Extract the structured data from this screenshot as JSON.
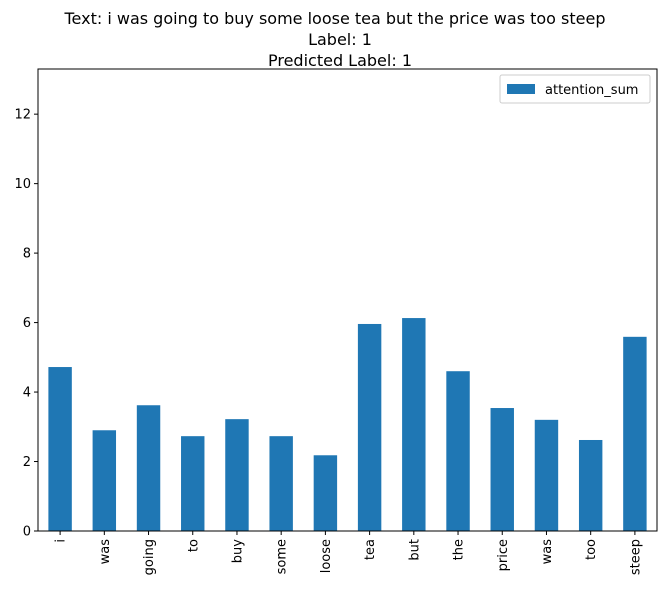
{
  "chart_data": {
    "type": "bar",
    "title_lines": [
      "Text: i was going to buy some loose tea but the price was too steep",
      "Label: 1",
      "Predicted Label: 1"
    ],
    "xlabel": "",
    "ylabel": "",
    "categories": [
      "i",
      "was",
      "going",
      "to",
      "buy",
      "some",
      "loose",
      "tea",
      "but",
      "the",
      "price",
      "was",
      "too",
      "steep"
    ],
    "series": [
      {
        "name": "attention_sum",
        "values": [
          4.72,
          2.9,
          3.62,
          2.73,
          3.22,
          2.73,
          2.18,
          5.96,
          6.13,
          4.6,
          3.54,
          3.2,
          2.62,
          5.59
        ],
        "color": "#1f77b4"
      }
    ],
    "ylim": [
      0,
      13.3
    ],
    "yticks": [
      0,
      2,
      4,
      6,
      8,
      10,
      12
    ],
    "grid": false,
    "legend_position": "top-right"
  }
}
